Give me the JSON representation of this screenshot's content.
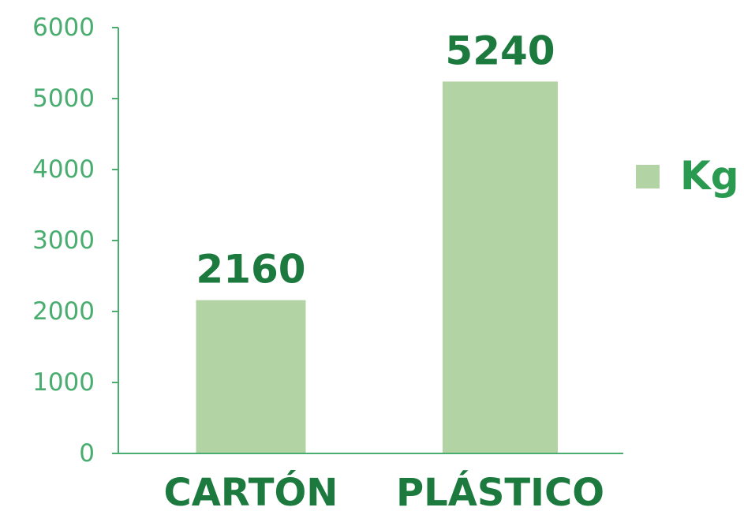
{
  "chart_data": {
    "type": "bar",
    "categories": [
      "CARTÓN",
      "PLÁSTICO"
    ],
    "series": [
      {
        "name": "Kg",
        "values": [
          2160,
          5240
        ]
      }
    ],
    "yticks": [
      "0",
      "1000",
      "2000",
      "3000",
      "4000",
      "5000",
      "6000"
    ],
    "ylim": [
      0,
      6000
    ],
    "data_labels": [
      "2160",
      "5240"
    ],
    "legend": {
      "position": "right",
      "entries": [
        "Kg"
      ]
    },
    "grid": false,
    "colors": {
      "bar": "#b2d3a4",
      "axis": "#49ad6f",
      "tick_text": "#49ad6f",
      "label_text": "#1d7a3f",
      "legend_text": "#2a9a50"
    }
  }
}
